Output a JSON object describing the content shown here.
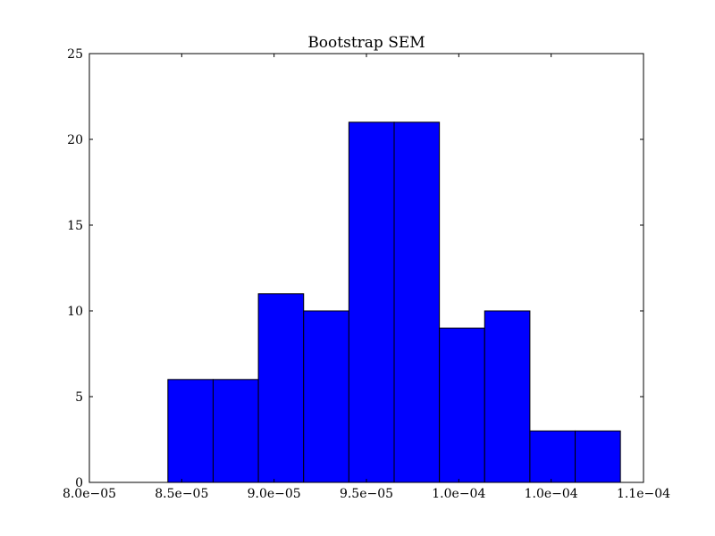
{
  "chart_data": {
    "type": "bar",
    "title": "Bootstrap  SEM",
    "xlabel": "",
    "ylabel": "",
    "xlim": [
      8e-05,
      0.00011
    ],
    "ylim": [
      0,
      25
    ],
    "grid": false,
    "x_ticks": [
      {
        "value": 8e-05,
        "label": "8.0e−05"
      },
      {
        "value": 8.5e-05,
        "label": "8.5e−05"
      },
      {
        "value": 9e-05,
        "label": "9.0e−05"
      },
      {
        "value": 9.5e-05,
        "label": "9.5e−05"
      },
      {
        "value": 0.0001,
        "label": "1.0e−04"
      },
      {
        "value": 0.000105,
        "label": "1.0e−04"
      },
      {
        "value": 0.00011,
        "label": "1.1e−04"
      }
    ],
    "y_ticks": [
      0,
      5,
      10,
      15,
      20,
      25
    ],
    "bins": [
      {
        "x0": 8.425e-05,
        "x1": 8.67e-05,
        "count": 6
      },
      {
        "x0": 8.67e-05,
        "x1": 8.915e-05,
        "count": 6
      },
      {
        "x0": 8.915e-05,
        "x1": 9.16e-05,
        "count": 11
      },
      {
        "x0": 9.16e-05,
        "x1": 9.405e-05,
        "count": 10
      },
      {
        "x0": 9.405e-05,
        "x1": 9.65e-05,
        "count": 21
      },
      {
        "x0": 9.65e-05,
        "x1": 9.895e-05,
        "count": 21
      },
      {
        "x0": 9.895e-05,
        "x1": 0.0001014,
        "count": 9
      },
      {
        "x0": 0.0001014,
        "x1": 0.00010385,
        "count": 10
      },
      {
        "x0": 0.00010385,
        "x1": 0.0001063,
        "count": 3
      },
      {
        "x0": 0.0001063,
        "x1": 0.00010875,
        "count": 3
      }
    ],
    "bar_color": "#0000ff",
    "edge_color": "#000000"
  }
}
